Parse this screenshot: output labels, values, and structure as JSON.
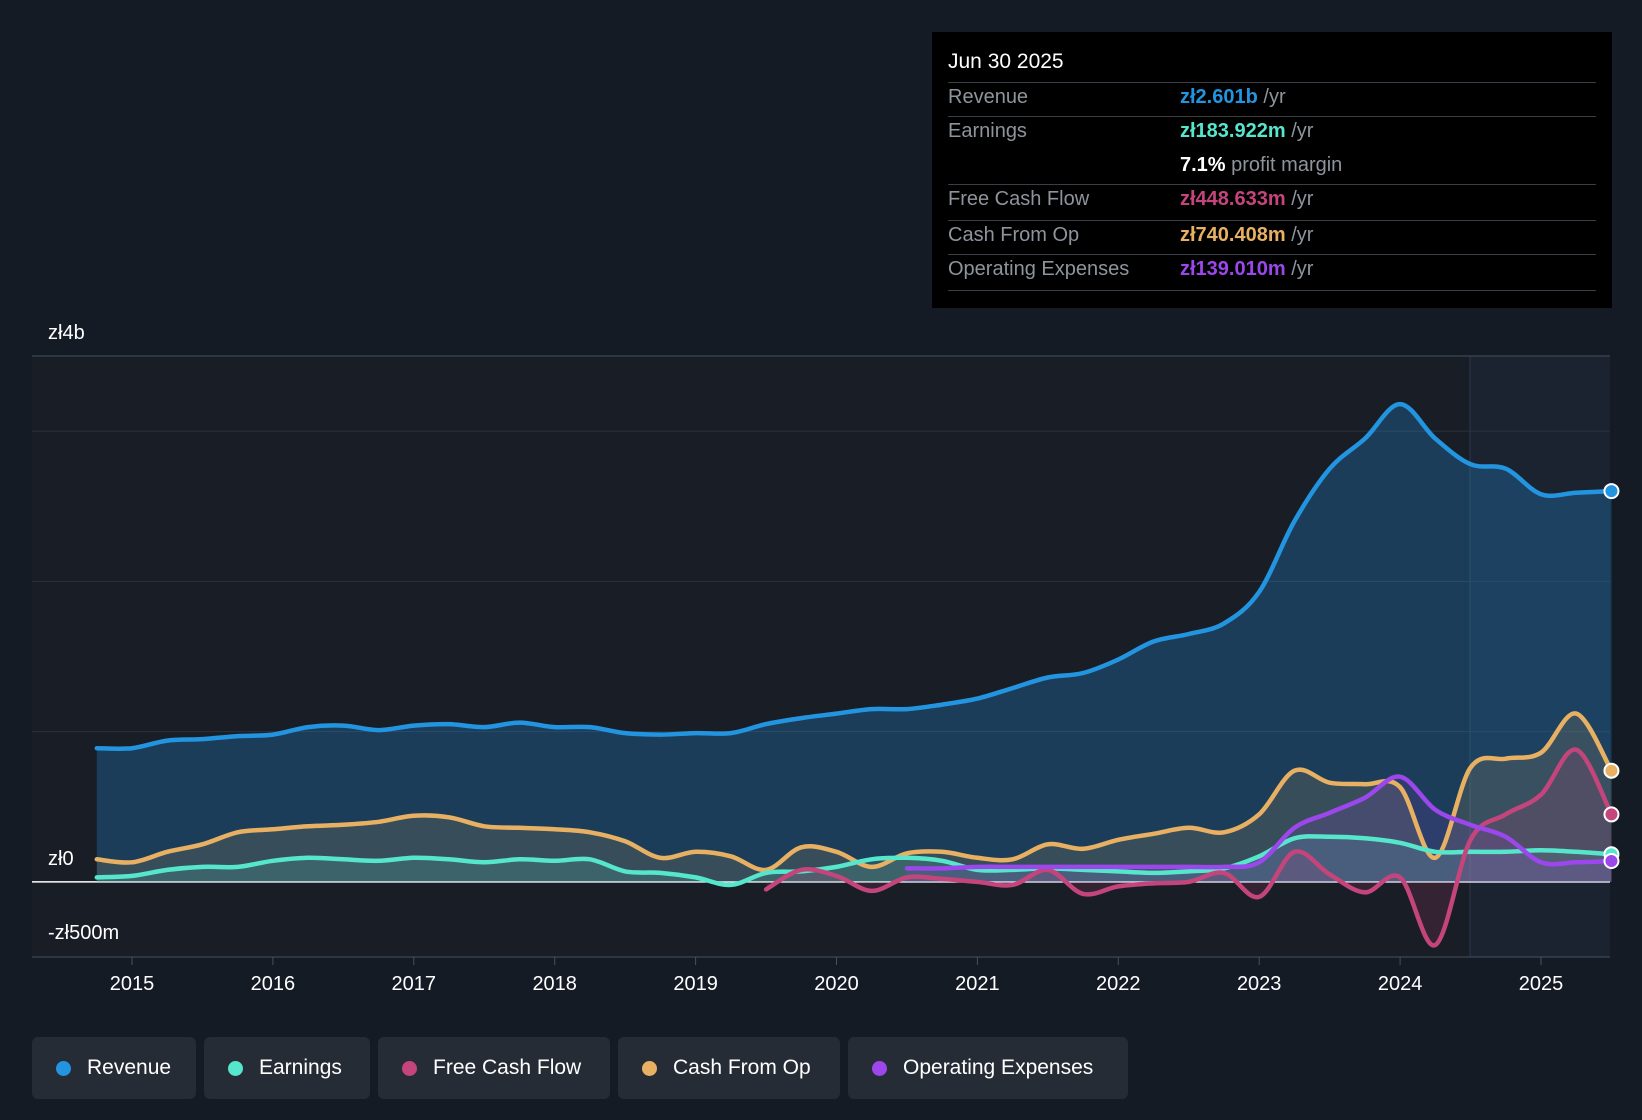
{
  "tooltip": {
    "date": "Jun 30 2025",
    "rows": {
      "revenue": {
        "label": "Revenue",
        "value": "zł2.601b",
        "unit": " /yr"
      },
      "earnings": {
        "label": "Earnings",
        "value": "zł183.922m",
        "unit": " /yr"
      },
      "margin": {
        "value": "7.1%",
        "unit": " profit margin"
      },
      "fcf": {
        "label": "Free Cash Flow",
        "value": "zł448.633m",
        "unit": " /yr"
      },
      "cfo": {
        "label": "Cash From Op",
        "value": "zł740.408m",
        "unit": " /yr"
      },
      "opex": {
        "label": "Operating Expenses",
        "value": "zł139.010m",
        "unit": " /yr"
      }
    }
  },
  "legend": {
    "revenue": "Revenue",
    "earnings": "Earnings",
    "fcf": "Free Cash Flow",
    "cfo": "Cash From Op",
    "opex": "Operating Expenses"
  },
  "colors": {
    "revenue": "#2394df",
    "earnings": "#56e6cc",
    "fcf": "#c4457c",
    "cfo": "#e8b062",
    "opex": "#9b47ec"
  },
  "chart_data": {
    "type": "area",
    "title": "",
    "xlabel": "",
    "ylabel": "",
    "y_tick_labels": [
      "zł4b",
      "zł0",
      "-zł500m"
    ],
    "x_tick_labels": [
      "2015",
      "2016",
      "2017",
      "2018",
      "2019",
      "2020",
      "2021",
      "2022",
      "2023",
      "2024",
      "2025"
    ],
    "xlim": [
      2014.75,
      2025.5
    ],
    "ylim": [
      -500,
      3500
    ],
    "units": "zł millions",
    "series": [
      {
        "name": "Revenue",
        "x": [
          2014.75,
          2015.0,
          2015.25,
          2015.5,
          2015.75,
          2016.0,
          2016.25,
          2016.5,
          2016.75,
          2017.0,
          2017.25,
          2017.5,
          2017.75,
          2018.0,
          2018.25,
          2018.5,
          2018.75,
          2019.0,
          2019.25,
          2019.5,
          2019.75,
          2020.0,
          2020.25,
          2020.5,
          2020.75,
          2021.0,
          2021.25,
          2021.5,
          2021.75,
          2022.0,
          2022.25,
          2022.5,
          2022.75,
          2023.0,
          2023.25,
          2023.5,
          2023.75,
          2024.0,
          2024.25,
          2024.5,
          2024.75,
          2025.0,
          2025.25,
          2025.5
        ],
        "values": [
          890,
          890,
          940,
          950,
          970,
          980,
          1030,
          1040,
          1010,
          1040,
          1050,
          1030,
          1060,
          1030,
          1030,
          990,
          980,
          990,
          990,
          1050,
          1090,
          1120,
          1150,
          1150,
          1180,
          1220,
          1290,
          1360,
          1390,
          1480,
          1600,
          1650,
          1720,
          1930,
          2400,
          2750,
          2950,
          3180,
          2950,
          2780,
          2750,
          2580,
          2590,
          2601
        ]
      },
      {
        "name": "Earnings",
        "x": [
          2014.75,
          2015.0,
          2015.25,
          2015.5,
          2015.75,
          2016.0,
          2016.25,
          2016.5,
          2016.75,
          2017.0,
          2017.25,
          2017.5,
          2017.75,
          2018.0,
          2018.25,
          2018.5,
          2018.75,
          2019.0,
          2019.25,
          2019.5,
          2019.75,
          2020.0,
          2020.25,
          2020.5,
          2020.75,
          2021.0,
          2021.25,
          2021.5,
          2021.75,
          2022.0,
          2022.25,
          2022.5,
          2022.75,
          2023.0,
          2023.25,
          2023.5,
          2023.75,
          2024.0,
          2024.25,
          2024.5,
          2024.75,
          2025.0,
          2025.25,
          2025.5
        ],
        "values": [
          30,
          40,
          80,
          100,
          100,
          140,
          160,
          150,
          140,
          160,
          150,
          130,
          150,
          140,
          150,
          70,
          60,
          30,
          -20,
          60,
          70,
          100,
          150,
          160,
          140,
          80,
          80,
          90,
          80,
          70,
          60,
          70,
          90,
          170,
          290,
          300,
          290,
          260,
          200,
          200,
          200,
          210,
          200,
          184
        ]
      },
      {
        "name": "Free Cash Flow",
        "x": [
          2019.5,
          2019.75,
          2020.0,
          2020.25,
          2020.5,
          2020.75,
          2021.0,
          2021.25,
          2021.5,
          2021.75,
          2022.0,
          2022.25,
          2022.5,
          2022.75,
          2023.0,
          2023.25,
          2023.5,
          2023.75,
          2024.0,
          2024.25,
          2024.5,
          2024.75,
          2025.0,
          2025.25,
          2025.5
        ],
        "values": [
          -50,
          80,
          40,
          -60,
          30,
          20,
          0,
          -20,
          80,
          -80,
          -30,
          -10,
          0,
          60,
          -100,
          200,
          50,
          -70,
          30,
          -420,
          280,
          450,
          580,
          880,
          449
        ]
      },
      {
        "name": "Cash From Op",
        "x": [
          2014.75,
          2015.0,
          2015.25,
          2015.5,
          2015.75,
          2016.0,
          2016.25,
          2016.5,
          2016.75,
          2017.0,
          2017.25,
          2017.5,
          2017.75,
          2018.0,
          2018.25,
          2018.5,
          2018.75,
          2019.0,
          2019.25,
          2019.5,
          2019.75,
          2020.0,
          2020.25,
          2020.5,
          2020.75,
          2021.0,
          2021.25,
          2021.5,
          2021.75,
          2022.0,
          2022.25,
          2022.5,
          2022.75,
          2023.0,
          2023.25,
          2023.5,
          2023.75,
          2024.0,
          2024.25,
          2024.5,
          2024.75,
          2025.0,
          2025.25,
          2025.5
        ],
        "values": [
          150,
          130,
          200,
          250,
          330,
          350,
          370,
          380,
          400,
          440,
          430,
          370,
          360,
          350,
          330,
          270,
          160,
          200,
          170,
          80,
          230,
          200,
          100,
          190,
          200,
          160,
          150,
          250,
          220,
          280,
          320,
          360,
          330,
          450,
          740,
          660,
          650,
          630,
          160,
          760,
          820,
          860,
          1120,
          740
        ]
      },
      {
        "name": "Operating Expenses",
        "x": [
          2020.5,
          2020.75,
          2021.0,
          2021.25,
          2021.5,
          2021.75,
          2022.0,
          2022.25,
          2022.5,
          2022.75,
          2023.0,
          2023.25,
          2023.5,
          2023.75,
          2024.0,
          2024.25,
          2024.5,
          2024.75,
          2025.0,
          2025.25,
          2025.5
        ],
        "values": [
          90,
          90,
          100,
          100,
          100,
          100,
          100,
          100,
          100,
          100,
          130,
          360,
          460,
          560,
          700,
          480,
          380,
          300,
          130,
          130,
          139
        ]
      }
    ]
  }
}
